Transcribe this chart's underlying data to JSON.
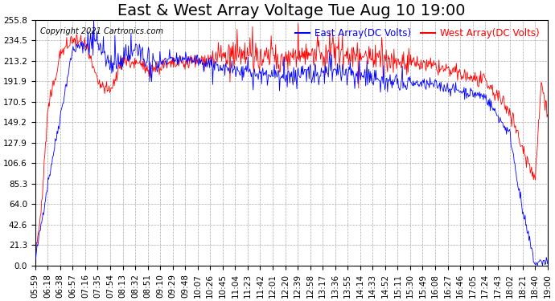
{
  "title": "East & West Array Voltage Tue Aug 10 19:00",
  "copyright": "Copyright 2021 Cartronics.com",
  "legend_east": "East Array(DC Volts)",
  "legend_west": "West Array(DC Volts)",
  "east_color": "blue",
  "west_color": "red",
  "ymin": 0.0,
  "ymax": 255.8,
  "yticks": [
    0.0,
    21.3,
    42.6,
    64.0,
    85.3,
    106.6,
    127.9,
    149.2,
    170.5,
    191.9,
    213.2,
    234.5,
    255.8
  ],
  "bg_color": "white",
  "grid_color": "#aaaaaa",
  "title_fontsize": 14,
  "label_fontsize": 8.5,
  "tick_fontsize": 7.5,
  "x_tick_labels": [
    "05:59",
    "06:18",
    "06:38",
    "06:57",
    "07:16",
    "07:35",
    "07:54",
    "08:13",
    "08:32",
    "08:51",
    "09:10",
    "09:29",
    "09:48",
    "10:07",
    "10:26",
    "10:45",
    "11:04",
    "11:23",
    "11:42",
    "12:01",
    "12:20",
    "12:39",
    "12:58",
    "13:17",
    "13:36",
    "13:55",
    "14:14",
    "14:33",
    "14:52",
    "15:11",
    "15:30",
    "15:49",
    "16:08",
    "16:27",
    "16:46",
    "17:05",
    "17:24",
    "17:43",
    "18:02",
    "18:21",
    "18:40",
    "19:00"
  ]
}
